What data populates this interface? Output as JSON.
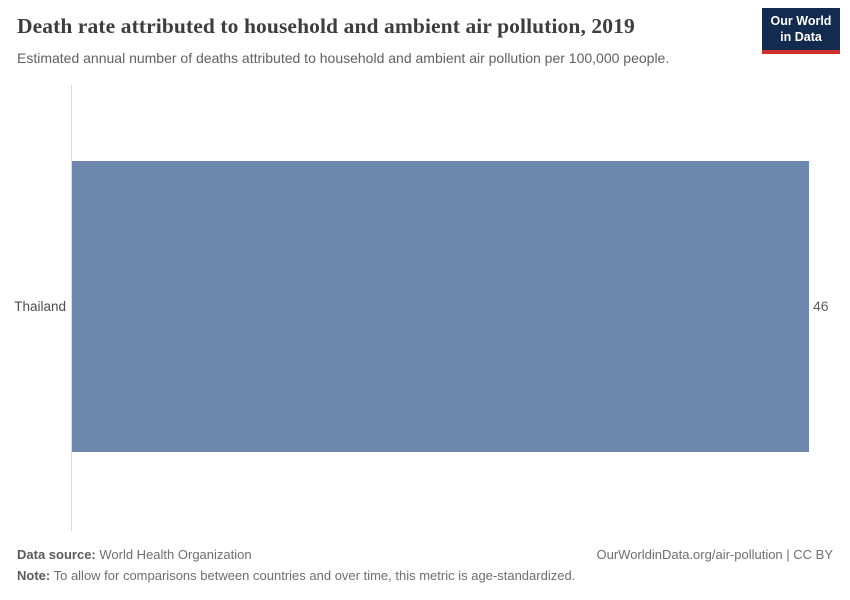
{
  "header": {
    "title": "Death rate attributed to household and ambient air pollution, 2019",
    "subtitle": "Estimated annual number of deaths attributed to household and ambient air pollution per 100,000 people.",
    "logo": {
      "line1": "Our World",
      "line2": "in Data",
      "bg": "#122b4e",
      "accent": "#d0302c"
    }
  },
  "chart_data": {
    "type": "bar",
    "orientation": "horizontal",
    "title": "Death rate attributed to household and ambient air pollution, 2019",
    "subtitle": "Estimated annual number of deaths attributed to household and ambient air pollution per 100,000 people.",
    "categories": [
      "Thailand"
    ],
    "values": [
      46
    ],
    "value_labels": [
      "46"
    ],
    "xlabel": "",
    "ylabel": "",
    "xlim": [
      0,
      46
    ],
    "grid": false,
    "legend": "none",
    "bar_color": "#6d87ad",
    "axis_color": "#dddddd"
  },
  "footer": {
    "source_label": "Data source:",
    "source_value": " World Health Organization",
    "rights": "OurWorldinData.org/air-pollution | CC BY",
    "note_label": "Note:",
    "note_value": " To allow for comparisons between countries and over time, this metric is age-standardized."
  }
}
